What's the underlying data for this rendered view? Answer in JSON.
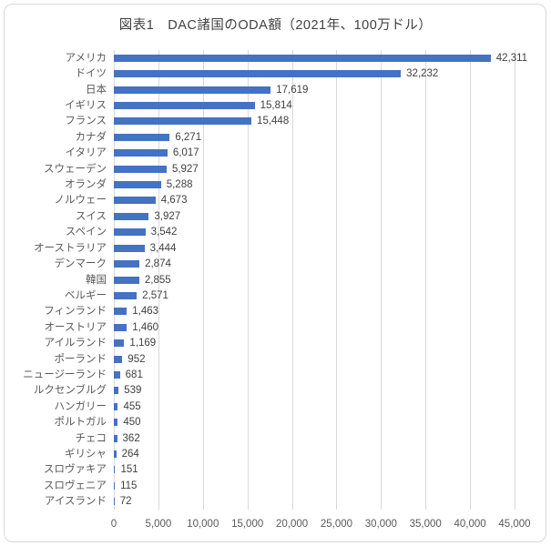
{
  "chart_data": {
    "type": "bar",
    "orientation": "horizontal",
    "title": "図表1　DAC諸国のODA額（2021年、100万ドル）",
    "categories": [
      "アメリカ",
      "ドイツ",
      "日本",
      "イギリス",
      "フランス",
      "カナダ",
      "イタリア",
      "スウェーデン",
      "オランダ",
      "ノルウェー",
      "スイス",
      "スペイン",
      "オーストラリア",
      "デンマーク",
      "韓国",
      "ベルギー",
      "フィンランド",
      "オーストリア",
      "アイルランド",
      "ポーランド",
      "ニュージーランド",
      "ルクセンブルグ",
      "ハンガリー",
      "ポルトガル",
      "チェコ",
      "ギリシャ",
      "スロヴァキア",
      "スロヴェニア",
      "アイスランド"
    ],
    "values": [
      42311,
      32232,
      17619,
      15814,
      15448,
      6271,
      6017,
      5927,
      5288,
      4673,
      3927,
      3542,
      3444,
      2874,
      2855,
      2571,
      1463,
      1460,
      1169,
      952,
      681,
      539,
      455,
      450,
      362,
      264,
      151,
      115,
      72
    ],
    "value_labels": [
      "42,311",
      "32,232",
      "17,619",
      "15,814",
      "15,448",
      "6,271",
      "6,017",
      "5,927",
      "5,288",
      "4,673",
      "3,927",
      "3,542",
      "3,444",
      "2,874",
      "2,855",
      "2,571",
      "1,463",
      "1,460",
      "1,169",
      "952",
      "681",
      "539",
      "455",
      "450",
      "362",
      "264",
      "151",
      "115",
      "72"
    ],
    "xlabel": "",
    "ylabel": "",
    "xlim": [
      0,
      45000
    ],
    "x_ticks": [
      0,
      5000,
      10000,
      15000,
      20000,
      25000,
      30000,
      35000,
      40000,
      45000
    ],
    "x_tick_labels": [
      "0",
      "5,000",
      "10,000",
      "15,000",
      "20,000",
      "25,000",
      "30,000",
      "35,000",
      "40,000",
      "45,000"
    ],
    "grid": true,
    "legend": "none",
    "bar_color": "#4472c4",
    "gridline_color": "#d9d9d9",
    "category_label_color": "#595959",
    "value_label_color": "#404040",
    "axis_label_color": "#595959",
    "title_color": "#404040"
  }
}
